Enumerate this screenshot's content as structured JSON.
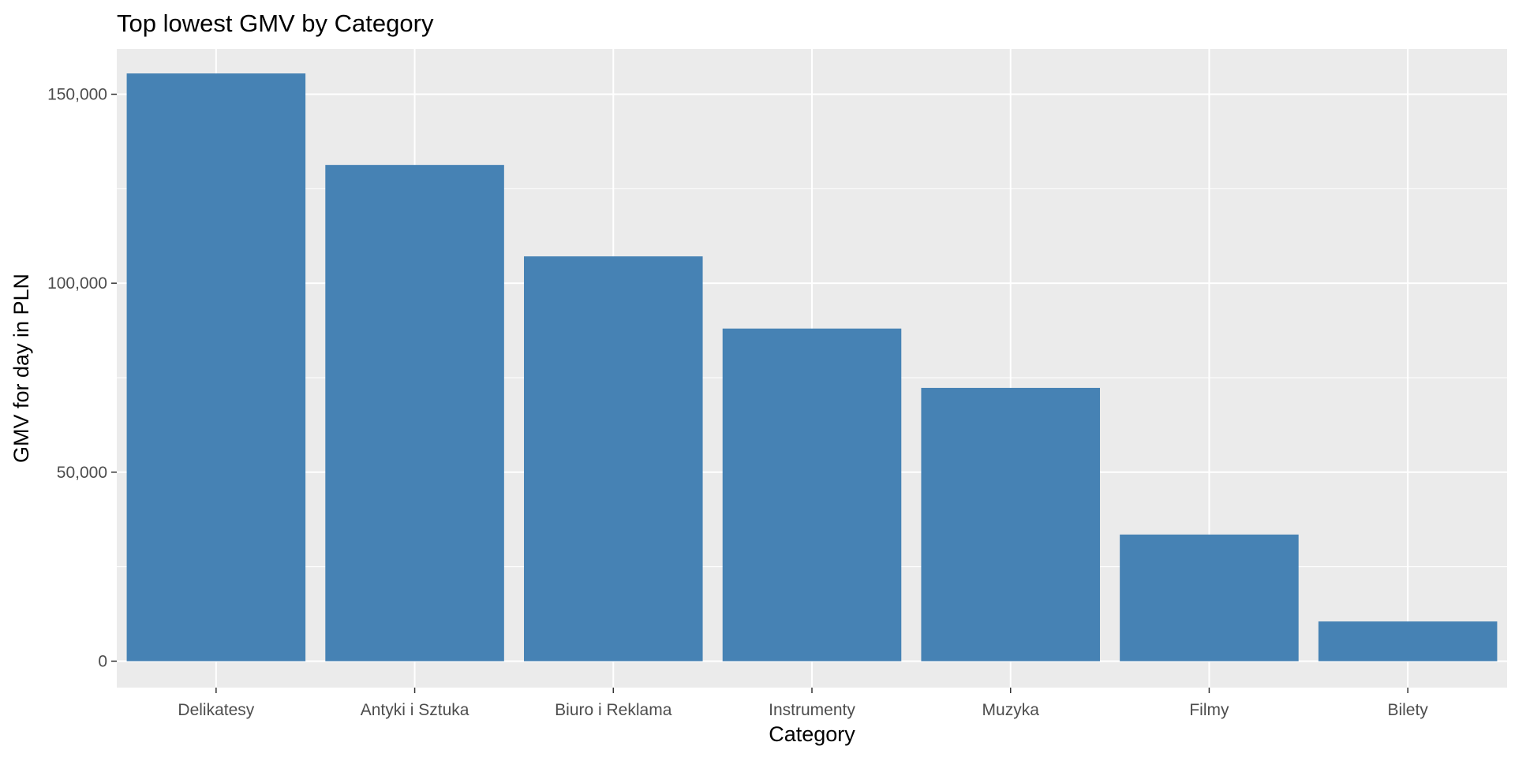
{
  "chart_data": {
    "type": "bar",
    "title": "Top lowest GMV by Category",
    "xlabel": "Category",
    "ylabel": "GMV for day in PLN",
    "categories": [
      "Delikatesy",
      "Antyki i Sztuka",
      "Biuro i Reklama",
      "Instrumenty",
      "Muzyka",
      "Filmy",
      "Bilety"
    ],
    "values": [
      155500,
      131300,
      107100,
      88000,
      72300,
      33500,
      10500
    ],
    "ylim": [
      -7000,
      162000
    ],
    "yticks": [
      0,
      50000,
      100000,
      150000
    ],
    "ytick_labels": [
      "0",
      "50,000",
      "100,000",
      "150,000"
    ],
    "grid": true,
    "legend": "none",
    "colors": {
      "bar": "#4682B4",
      "panel_background": "#EBEBEB",
      "grid_major": "#FFFFFF",
      "tick": "#333333"
    }
  }
}
